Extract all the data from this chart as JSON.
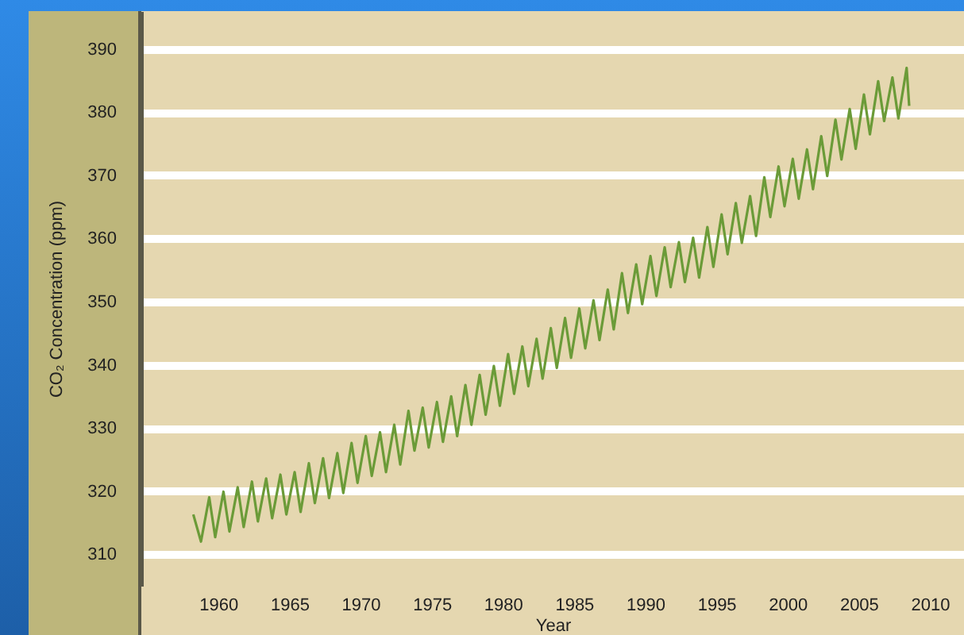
{
  "chart_data": {
    "type": "line",
    "xlabel": "Year",
    "ylabel": "CO₂ Concentration (ppm)",
    "x": [
      1958.25,
      1958.79,
      1959.37,
      1959.79,
      1960.37,
      1960.79,
      1961.37,
      1961.79,
      1962.37,
      1962.79,
      1963.37,
      1963.79,
      1964.37,
      1964.79,
      1965.37,
      1965.79,
      1966.37,
      1966.79,
      1967.37,
      1967.79,
      1968.37,
      1968.79,
      1969.37,
      1969.79,
      1970.37,
      1970.79,
      1971.37,
      1971.79,
      1972.37,
      1972.79,
      1973.37,
      1973.79,
      1974.37,
      1974.79,
      1975.37,
      1975.79,
      1976.37,
      1976.79,
      1977.37,
      1977.79,
      1978.37,
      1978.79,
      1979.37,
      1979.79,
      1980.37,
      1980.79,
      1981.37,
      1981.79,
      1982.37,
      1982.79,
      1983.37,
      1983.79,
      1984.37,
      1984.79,
      1985.37,
      1985.79,
      1986.37,
      1986.79,
      1987.37,
      1987.79,
      1988.37,
      1988.79,
      1989.37,
      1989.79,
      1990.37,
      1990.79,
      1991.37,
      1991.79,
      1992.37,
      1992.79,
      1993.37,
      1993.79,
      1994.37,
      1994.79,
      1995.37,
      1995.79,
      1996.37,
      1996.79,
      1997.37,
      1997.79,
      1998.37,
      1998.79,
      1999.37,
      1999.79,
      2000.37,
      2000.79,
      2001.37,
      2001.79,
      2002.37,
      2002.79,
      2003.37,
      2003.79,
      2004.37,
      2004.79,
      2005.37,
      2005.79,
      2006.37,
      2006.79,
      2007.37,
      2007.79,
      2008.37,
      2008.55
    ],
    "series": [
      {
        "color": "#6b9b38",
        "values": [
          316.3,
          312.0,
          319.0,
          312.7,
          319.9,
          313.6,
          320.6,
          314.3,
          321.5,
          315.2,
          322.0,
          315.7,
          322.6,
          316.3,
          323.0,
          316.7,
          324.4,
          318.1,
          325.2,
          318.9,
          326.0,
          319.7,
          327.6,
          321.3,
          328.7,
          322.4,
          329.3,
          323.0,
          330.5,
          324.2,
          332.7,
          326.4,
          333.2,
          326.9,
          334.1,
          327.8,
          335.0,
          328.7,
          336.8,
          330.5,
          338.4,
          332.1,
          339.8,
          333.5,
          341.7,
          335.4,
          342.9,
          336.6,
          344.1,
          337.8,
          345.8,
          339.5,
          347.4,
          341.1,
          348.9,
          342.6,
          350.2,
          343.9,
          351.9,
          345.6,
          354.5,
          348.2,
          355.9,
          349.6,
          357.2,
          350.9,
          358.6,
          352.3,
          359.4,
          353.1,
          360.1,
          353.8,
          361.8,
          355.5,
          363.8,
          357.5,
          365.6,
          359.3,
          366.7,
          360.4,
          369.7,
          363.4,
          371.4,
          365.1,
          372.6,
          366.3,
          374.1,
          367.8,
          376.2,
          369.9,
          378.8,
          372.5,
          380.5,
          374.2,
          382.8,
          376.5,
          384.9,
          378.6,
          385.5,
          379.0,
          387.0,
          381.0
        ]
      }
    ],
    "xlim": [
      1954.6,
      2012.4
    ],
    "xticks": [
      1960,
      1965,
      1970,
      1975,
      1980,
      1985,
      1990,
      1995,
      2000,
      2005,
      2010
    ],
    "ylim": [
      305,
      396
    ],
    "yticks": [
      310,
      320,
      330,
      340,
      350,
      360,
      370,
      380,
      390
    ],
    "grid": "y",
    "marker": "none",
    "line_style": "solid"
  }
}
